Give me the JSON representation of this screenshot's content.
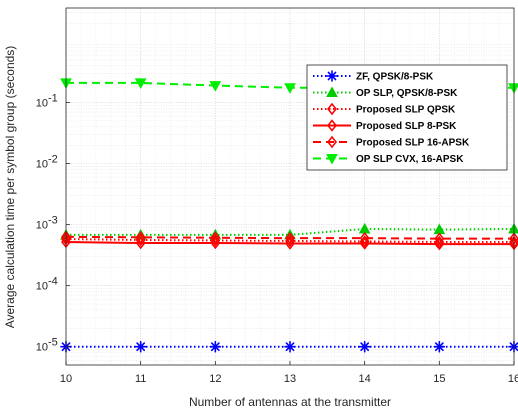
{
  "chart_data": {
    "type": "line",
    "xlabel": "Number of antennas at the transmitter",
    "ylabel": "Average calculation time per symbol group (seconds)",
    "y_scale": "log",
    "xlim": [
      10,
      16
    ],
    "ylim_exp": [
      -5.3,
      0.55
    ],
    "x_ticks": [
      "10",
      "11",
      "12",
      "13",
      "14",
      "15",
      "16"
    ],
    "y_ticks": [
      {
        "exp": -5,
        "label": "10",
        "sup": "-5"
      },
      {
        "exp": -4,
        "label": "10",
        "sup": "-4"
      },
      {
        "exp": -3,
        "label": "10",
        "sup": "-3"
      },
      {
        "exp": -2,
        "label": "10",
        "sup": "-2"
      },
      {
        "exp": -1,
        "label": "10",
        "sup": "-1"
      }
    ],
    "grid": true,
    "legend_position": "right",
    "x": [
      10,
      11,
      12,
      13,
      14,
      15,
      16
    ],
    "series": [
      {
        "name": "ZF, QPSK/8-PSK",
        "color": "#0000ff",
        "dash": "dotted",
        "marker": "asterisk",
        "values": [
          1e-05,
          1e-05,
          1e-05,
          1e-05,
          1e-05,
          1e-05,
          1e-05
        ]
      },
      {
        "name": "OP SLP, QPSK/8-PSK",
        "color": "#00cc00",
        "dash": "dotted",
        "marker": "triangle-up",
        "values": [
          0.00068,
          0.00068,
          0.00068,
          0.00068,
          0.00085,
          0.00083,
          0.00085
        ]
      },
      {
        "name": "Proposed SLP QPSK",
        "color": "#ff0000",
        "dash": "dotted",
        "marker": "diamond",
        "values": [
          0.00058,
          0.00056,
          0.00055,
          0.00054,
          0.00053,
          0.00052,
          0.00052
        ]
      },
      {
        "name": "Proposed SLP 8-PSK",
        "color": "#ff0000",
        "dash": "solid",
        "marker": "diamond",
        "values": [
          0.00052,
          0.0005,
          0.0005,
          0.00049,
          0.00049,
          0.00048,
          0.00048
        ]
      },
      {
        "name": "Proposed SLP 16-APSK",
        "color": "#ff0000",
        "dash": "dashed",
        "marker": "diamond",
        "values": [
          0.00063,
          0.00062,
          0.00061,
          0.0006,
          0.0006,
          0.00059,
          0.00059
        ]
      },
      {
        "name": "OP SLP CVX, 16-APSK",
        "color": "#00ee00",
        "dash": "dashed",
        "marker": "triangle-down",
        "values": [
          0.21,
          0.21,
          0.19,
          0.175,
          0.175,
          0.175,
          0.175
        ]
      }
    ]
  }
}
